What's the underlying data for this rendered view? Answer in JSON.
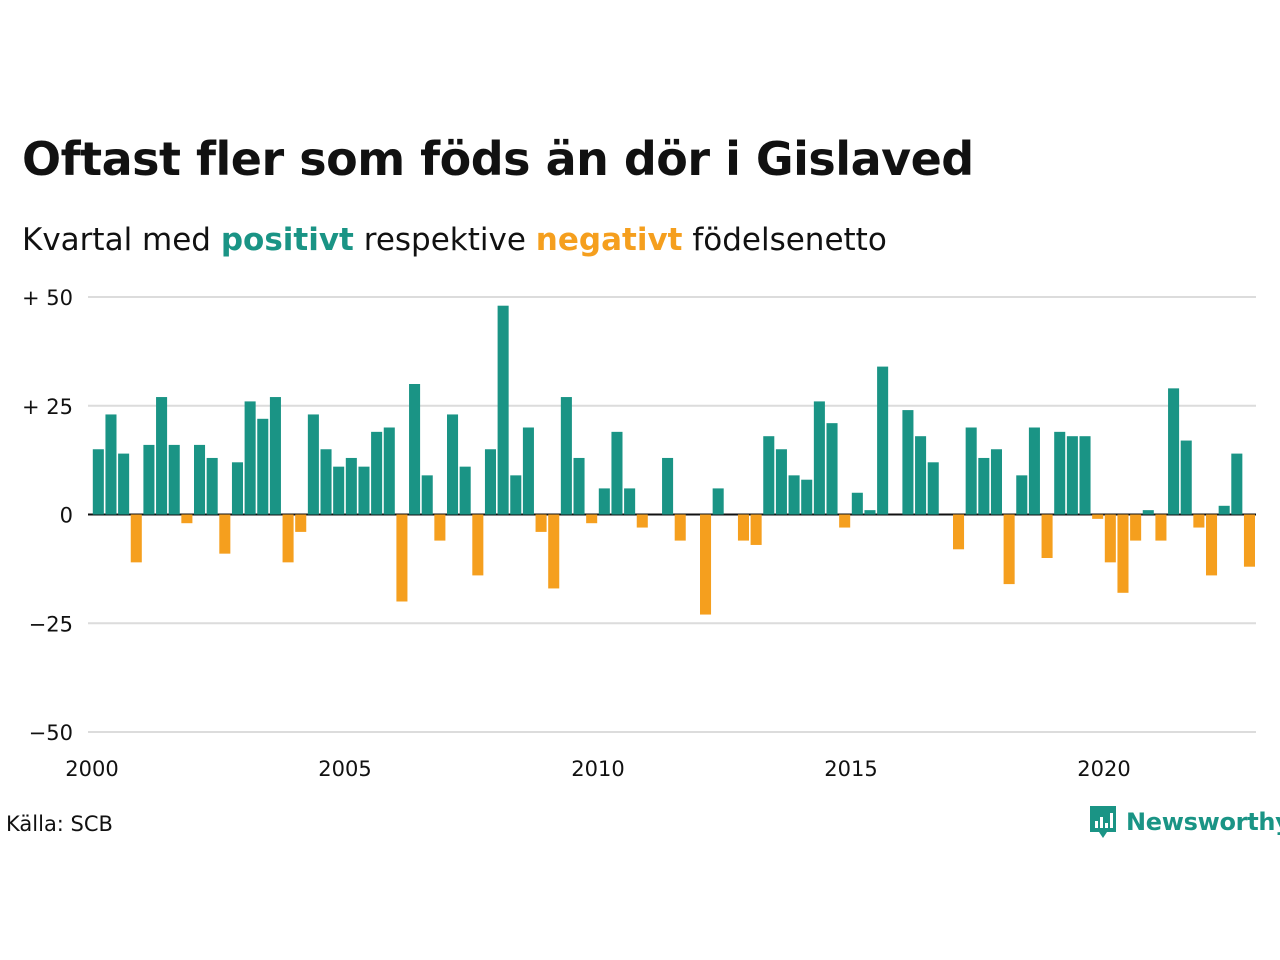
{
  "title": "Oftast fler som föds än dör i Gislaved",
  "subtitle": {
    "prefix": "Kvartal med",
    "positive_word": "positivt",
    "middle": "respektive",
    "negative_word": "negativt",
    "suffix": "födelsenetto"
  },
  "source": "Källa: SCB",
  "brand": {
    "name": "Newsworthy",
    "icon": "newsworthy-logo-icon"
  },
  "colors": {
    "positive": "#1a9485",
    "negative": "#f59f1e",
    "grid": "#dcdcdc",
    "baseline": "#111111"
  },
  "chart_data": {
    "type": "bar",
    "x_unit": "quarter",
    "start": "2000 Q1",
    "ylim": [
      -50,
      50
    ],
    "yticks": [
      {
        "value": 50,
        "label": "+ 50"
      },
      {
        "value": 25,
        "label": "+ 25"
      },
      {
        "value": 0,
        "label": "0"
      },
      {
        "value": -25,
        "label": "−25"
      },
      {
        "value": -50,
        "label": "−50"
      }
    ],
    "xticks": [
      {
        "year": 2000,
        "label": "2000"
      },
      {
        "year": 2005,
        "label": "2005"
      },
      {
        "year": 2010,
        "label": "2010"
      },
      {
        "year": 2015,
        "label": "2015"
      },
      {
        "year": 2020,
        "label": "2020"
      }
    ],
    "grid": true,
    "values": [
      15,
      23,
      14,
      -11,
      16,
      27,
      16,
      -2,
      16,
      13,
      -9,
      12,
      26,
      22,
      27,
      -11,
      -4,
      23,
      15,
      11,
      13,
      11,
      19,
      20,
      -20,
      30,
      9,
      -6,
      23,
      11,
      -14,
      15,
      48,
      9,
      20,
      -4,
      -17,
      27,
      13,
      -2,
      6,
      19,
      6,
      -3,
      0,
      13,
      -6,
      0,
      -23,
      6,
      0,
      -6,
      -7,
      18,
      15,
      9,
      8,
      26,
      21,
      -3,
      5,
      1,
      34,
      0,
      24,
      18,
      12,
      0,
      -8,
      20,
      13,
      15,
      -16,
      9,
      20,
      -10,
      19,
      18,
      18,
      -1,
      -11,
      -18,
      -6,
      1,
      -6,
      29,
      17,
      -3,
      -14,
      2,
      14,
      -12
    ]
  }
}
